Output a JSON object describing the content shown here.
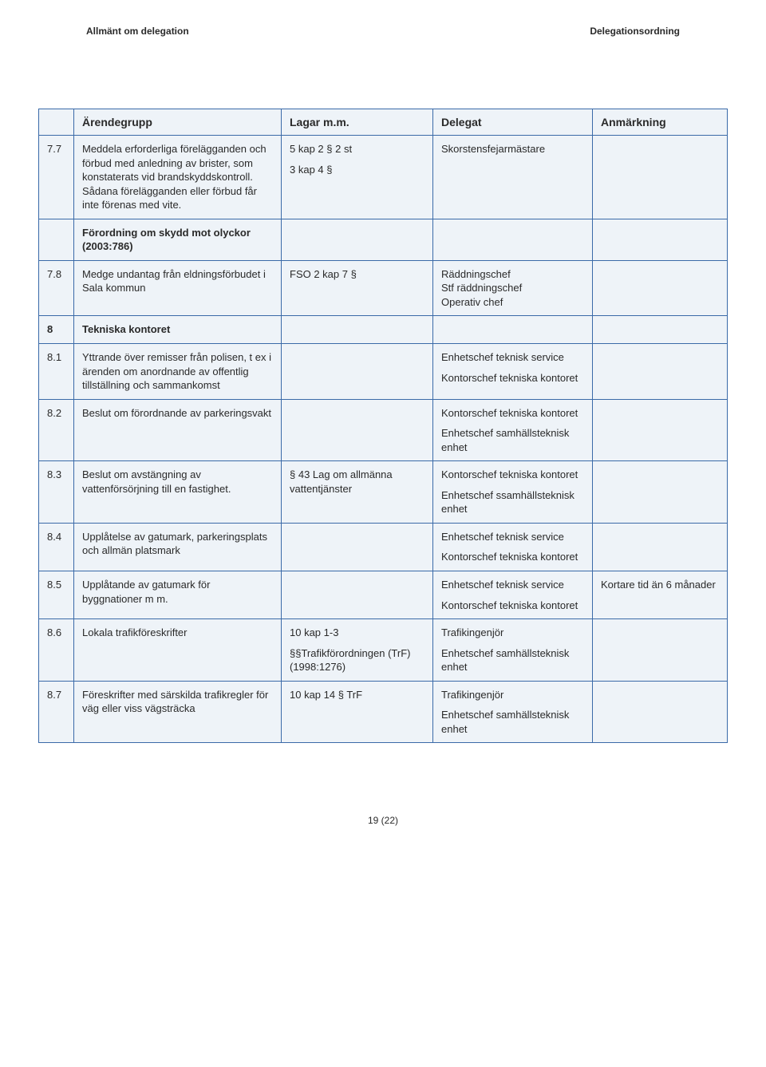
{
  "header": {
    "left": "Allmänt om delegation",
    "right": "Delegationsordning"
  },
  "columns": {
    "c1": "",
    "c2": "Ärendegrupp",
    "c3": "Lagar m.m.",
    "c4": "Delegat",
    "c5": "Anmärkning"
  },
  "rows": {
    "r77": {
      "num": "7.7",
      "arende": "Meddela erforderliga förelägganden och förbud med anledning av brister, som konstaterats vid brandskyddskontroll. Sådana förelägganden eller förbud får inte förenas med vite.",
      "lagar1": "5 kap 2 § 2 st",
      "lagar2": "3 kap 4 §",
      "delegat": "Skorstensfejarmästare",
      "anm": ""
    },
    "rForordning": {
      "num": "",
      "arende": "Förordning om skydd mot olyckor (2003:786)"
    },
    "r78": {
      "num": "7.8",
      "arende": "Medge undantag från eldningsförbudet i Sala kommun",
      "lagar": "FSO 2 kap 7 §",
      "delegat1": "Räddningschef",
      "delegat2": "Stf räddningschef",
      "delegat3": "Operativ chef",
      "anm": ""
    },
    "r8": {
      "num": "8",
      "arende": "Tekniska kontoret"
    },
    "r81": {
      "num": "8.1",
      "arende": "Yttrande över remisser från polisen, t ex i ärenden om anordnande av offentlig tillställning och sammankomst",
      "delegat1": "Enhetschef teknisk service",
      "delegat2": "Kontorschef tekniska kontoret"
    },
    "r82": {
      "num": "8.2",
      "arende": "Beslut om förordnande av parkeringsvakt",
      "delegat1": "Kontorschef tekniska kontoret",
      "delegat2": "Enhetschef samhällsteknisk enhet"
    },
    "r83": {
      "num": "8.3",
      "arende": "Beslut om avstängning av vattenförsörjning till en fastighet.",
      "lagar": "§ 43 Lag om allmänna vattentjänster",
      "delegat1": "Kontorschef tekniska kontoret",
      "delegat2": "Enhetschef ssamhällsteknisk enhet"
    },
    "r84": {
      "num": "8.4",
      "arende": "Upplåtelse av gatumark, parkeringsplats och allmän platsmark",
      "delegat1": "Enhetschef teknisk service",
      "delegat2": "Kontorschef tekniska kontoret"
    },
    "r85": {
      "num": "8.5",
      "arende": "Upplåtande av gatumark för byggnationer m m.",
      "delegat1": "Enhetschef teknisk service",
      "delegat2": "Kontorschef tekniska kontoret",
      "anm": "Kortare tid än 6 månader"
    },
    "r86": {
      "num": "8.6",
      "arende": "Lokala trafikföreskrifter",
      "lagar1": "10 kap 1-3",
      "lagar2": "§§Trafikförordningen (TrF) (1998:1276)",
      "delegat1": "Trafikingenjör",
      "delegat2": "Enhetschef samhällsteknisk enhet"
    },
    "r87": {
      "num": "8.7",
      "arende": "Föreskrifter med särskilda trafikregler för väg eller viss vägsträcka",
      "lagar": "10 kap 14 § TrF",
      "delegat1": "Trafikingenjör",
      "delegat2": "Enhetschef samhällsteknisk enhet"
    }
  },
  "footer": "19 (22)"
}
